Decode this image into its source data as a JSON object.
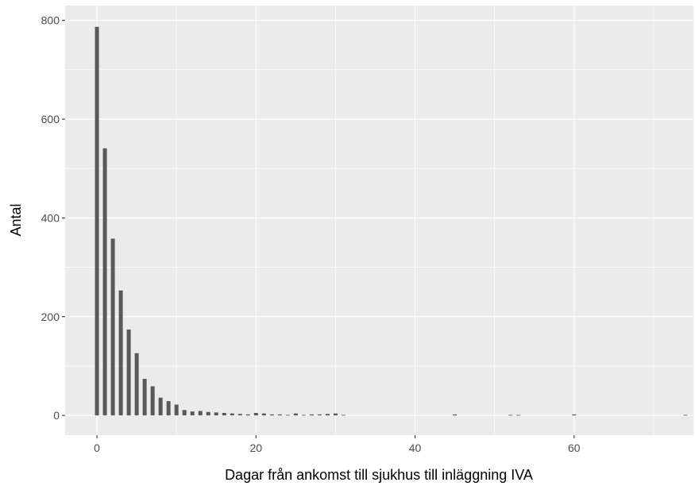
{
  "chart_data": {
    "type": "bar",
    "xlabel": "Dagar från ankomst till sjukhus till inläggning IVA",
    "ylabel": "Antal",
    "xlim": [
      -4,
      75
    ],
    "ylim": [
      -40,
      830
    ],
    "x_ticks": [
      0,
      20,
      40,
      60
    ],
    "y_ticks": [
      0,
      200,
      400,
      600,
      800
    ],
    "grid": true,
    "bar_color": "#595959",
    "panel_color": "#ebebeb",
    "gridline_color": "#ffffff",
    "points": [
      {
        "x": 0,
        "y": 787
      },
      {
        "x": 1,
        "y": 541
      },
      {
        "x": 2,
        "y": 358
      },
      {
        "x": 3,
        "y": 253
      },
      {
        "x": 4,
        "y": 174
      },
      {
        "x": 5,
        "y": 126
      },
      {
        "x": 6,
        "y": 74
      },
      {
        "x": 7,
        "y": 59
      },
      {
        "x": 8,
        "y": 36
      },
      {
        "x": 9,
        "y": 29
      },
      {
        "x": 10,
        "y": 22
      },
      {
        "x": 11,
        "y": 11
      },
      {
        "x": 12,
        "y": 8
      },
      {
        "x": 13,
        "y": 9
      },
      {
        "x": 14,
        "y": 7
      },
      {
        "x": 15,
        "y": 6
      },
      {
        "x": 16,
        "y": 5
      },
      {
        "x": 17,
        "y": 4
      },
      {
        "x": 18,
        "y": 3
      },
      {
        "x": 19,
        "y": 2
      },
      {
        "x": 20,
        "y": 5
      },
      {
        "x": 21,
        "y": 4
      },
      {
        "x": 22,
        "y": 2
      },
      {
        "x": 23,
        "y": 2
      },
      {
        "x": 24,
        "y": 1
      },
      {
        "x": 25,
        "y": 4
      },
      {
        "x": 26,
        "y": 1
      },
      {
        "x": 27,
        "y": 2
      },
      {
        "x": 28,
        "y": 2
      },
      {
        "x": 29,
        "y": 3
      },
      {
        "x": 30,
        "y": 4
      },
      {
        "x": 31,
        "y": 1
      },
      {
        "x": 45,
        "y": 2
      },
      {
        "x": 52,
        "y": 1
      },
      {
        "x": 53,
        "y": 1
      },
      {
        "x": 60,
        "y": 2
      },
      {
        "x": 74,
        "y": 1
      }
    ]
  }
}
